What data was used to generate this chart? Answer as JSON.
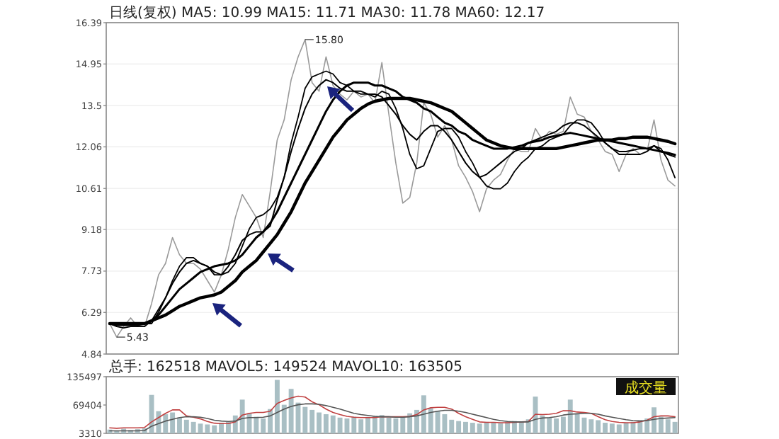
{
  "chart_data": [
    {
      "type": "line",
      "title": "日线(复权) MA5: 10.99 MA15: 11.71 MA30: 11.78 MA60: 12.17",
      "categories": [
        null,
        null,
        null,
        null,
        null,
        null,
        null,
        null,
        null,
        null,
        null,
        null,
        null,
        null,
        null,
        null,
        null,
        null,
        null,
        null,
        null,
        null,
        null,
        null,
        null,
        null,
        null,
        null,
        null,
        null,
        null,
        null,
        null,
        null,
        null,
        null,
        null,
        null,
        null,
        null,
        null,
        null,
        null,
        null,
        null,
        null,
        null,
        null,
        null,
        null,
        null,
        null,
        null,
        null,
        null,
        null,
        null,
        null,
        null,
        null,
        null,
        null,
        null,
        null,
        null,
        null,
        null,
        null,
        null,
        null,
        null,
        null,
        null,
        null,
        null,
        null,
        null,
        null,
        null,
        null,
        null,
        null
      ],
      "ylim": [
        4.84,
        16.39
      ],
      "yticks": [
        4.84,
        6.29,
        7.73,
        9.18,
        10.61,
        12.06,
        13.5,
        14.95,
        16.39
      ],
      "grid": "y",
      "tick_labels": "y",
      "annotations": [
        "15.80",
        "5.43"
      ],
      "series": [
        {
          "color": "#9a9a9a",
          "values": [
            5.9,
            5.43,
            5.8,
            6.1,
            5.8,
            5.8,
            6.6,
            7.6,
            8.0,
            8.9,
            8.3,
            8.0,
            8.0,
            7.8,
            7.4,
            7.0,
            7.6,
            8.5,
            9.6,
            10.4,
            10.0,
            9.6,
            8.9,
            10.5,
            12.3,
            13.0,
            14.4,
            15.2,
            15.8,
            14.3,
            14.0,
            15.2,
            14.2,
            13.9,
            13.7,
            14.0,
            13.8,
            13.9,
            13.6,
            15.0,
            13.2,
            11.5,
            10.1,
            10.3,
            11.5,
            13.6,
            13.2,
            12.4,
            12.8,
            12.3,
            11.4,
            11.0,
            10.5,
            9.8,
            10.6,
            10.9,
            11.1,
            11.6,
            12.0,
            11.9,
            11.9,
            12.7,
            12.3,
            12.6,
            12.5,
            12.6,
            13.8,
            13.2,
            13.1,
            12.6,
            12.3,
            11.9,
            11.8,
            11.2,
            11.8,
            12.0,
            11.8,
            11.9,
            13.0,
            11.6,
            10.9,
            10.7
          ]
        },
        {
          "color": "#000000",
          "values": [
            5.9,
            5.8,
            5.75,
            5.8,
            5.8,
            5.8,
            6.0,
            6.4,
            6.8,
            7.4,
            7.9,
            8.2,
            8.2,
            8.0,
            7.9,
            7.6,
            7.6,
            7.7,
            8.0,
            8.6,
            9.2,
            9.6,
            9.7,
            9.9,
            10.3,
            11.0,
            12.2,
            13.1,
            14.1,
            14.5,
            14.6,
            14.7,
            14.6,
            14.3,
            14.2,
            14.0,
            13.9,
            13.9,
            13.8,
            14.0,
            13.9,
            13.4,
            12.7,
            11.8,
            11.3,
            11.4,
            12.0,
            12.6,
            12.7,
            12.7,
            12.4,
            11.9,
            11.5,
            11.0,
            10.7,
            10.6,
            10.6,
            10.8,
            11.2,
            11.5,
            11.7,
            12.0,
            12.1,
            12.3,
            12.4,
            12.5,
            12.8,
            13.0,
            13.0,
            12.9,
            12.6,
            12.2,
            12.0,
            11.8,
            11.8,
            11.8,
            11.8,
            11.9,
            12.1,
            12.0,
            11.6,
            10.99
          ]
        },
        {
          "color": "#000000",
          "values": [
            5.9,
            5.9,
            5.9,
            5.9,
            5.9,
            5.9,
            5.9,
            6.3,
            6.8,
            7.3,
            7.7,
            8.0,
            8.1,
            8.0,
            7.9,
            7.7,
            7.6,
            7.9,
            8.3,
            8.8,
            9.0,
            9.1,
            9.1,
            9.3,
            10.2,
            11.0,
            11.9,
            12.7,
            13.4,
            13.9,
            14.2,
            14.4,
            14.3,
            14.1,
            14.0,
            14.0,
            14.0,
            13.9,
            13.9,
            13.8,
            13.5,
            13.2,
            12.8,
            12.5,
            12.3,
            12.6,
            12.8,
            12.8,
            12.6,
            12.3,
            11.9,
            11.5,
            11.2,
            11.0,
            11.1,
            11.3,
            11.5,
            11.7,
            11.9,
            12.0,
            12.2,
            12.3,
            12.4,
            12.5,
            12.6,
            12.8,
            12.9,
            12.9,
            12.8,
            12.6,
            12.4,
            12.2,
            12.0,
            11.9,
            11.9,
            11.95,
            12.0,
            12.0,
            12.1,
            11.9,
            11.8,
            11.71
          ]
        },
        {
          "color": "#000000",
          "values": [
            5.9,
            5.85,
            5.85,
            5.85,
            5.85,
            5.9,
            6.0,
            6.2,
            6.5,
            6.8,
            7.1,
            7.3,
            7.5,
            7.7,
            7.8,
            7.9,
            7.95,
            8.0,
            8.1,
            8.3,
            8.6,
            8.9,
            9.1,
            9.4,
            9.8,
            10.3,
            10.8,
            11.3,
            11.8,
            12.3,
            12.8,
            13.3,
            13.7,
            14.0,
            14.2,
            14.3,
            14.3,
            14.3,
            14.2,
            14.2,
            14.1,
            14.0,
            13.8,
            13.7,
            13.6,
            13.4,
            13.3,
            13.1,
            12.9,
            12.8,
            12.6,
            12.5,
            12.3,
            12.2,
            12.1,
            12.0,
            12.0,
            12.0,
            12.05,
            12.1,
            12.2,
            12.25,
            12.3,
            12.4,
            12.45,
            12.5,
            12.55,
            12.5,
            12.45,
            12.4,
            12.35,
            12.3,
            12.25,
            12.2,
            12.15,
            12.1,
            12.05,
            12.0,
            11.95,
            11.9,
            11.85,
            11.78
          ]
        },
        {
          "color": "#000000",
          "values": [
            5.9,
            5.9,
            5.9,
            5.9,
            5.9,
            5.9,
            6.0,
            6.1,
            6.2,
            6.35,
            6.5,
            6.6,
            6.7,
            6.8,
            6.85,
            6.9,
            7.0,
            7.2,
            7.4,
            7.7,
            7.9,
            8.1,
            8.4,
            8.7,
            9.0,
            9.4,
            9.8,
            10.3,
            10.8,
            11.2,
            11.6,
            12.0,
            12.4,
            12.7,
            13.0,
            13.2,
            13.4,
            13.55,
            13.65,
            13.7,
            13.75,
            13.75,
            13.75,
            13.75,
            13.7,
            13.65,
            13.6,
            13.5,
            13.4,
            13.3,
            13.1,
            12.9,
            12.7,
            12.5,
            12.3,
            12.2,
            12.1,
            12.05,
            12.0,
            12.0,
            12.0,
            12.0,
            12.0,
            12.0,
            12.0,
            12.05,
            12.1,
            12.15,
            12.2,
            12.25,
            12.3,
            12.3,
            12.3,
            12.35,
            12.35,
            12.4,
            12.4,
            12.4,
            12.35,
            12.3,
            12.25,
            12.17
          ]
        }
      ]
    },
    {
      "type": "bar",
      "title": "总手: 162518 MAVOL5: 149524 MAVOL10: 163505",
      "categories": [
        null,
        null,
        null,
        null,
        null,
        null,
        null,
        null,
        null,
        null,
        null,
        null,
        null,
        null,
        null,
        null,
        null,
        null,
        null,
        null,
        null,
        null,
        null,
        null,
        null,
        null,
        null,
        null,
        null,
        null,
        null,
        null,
        null,
        null,
        null,
        null,
        null,
        null,
        null,
        null,
        null,
        null,
        null,
        null,
        null,
        null,
        null,
        null,
        null,
        null,
        null,
        null,
        null,
        null,
        null,
        null,
        null,
        null,
        null,
        null,
        null,
        null,
        null,
        null,
        null,
        null,
        null,
        null,
        null,
        null,
        null,
        null,
        null,
        null,
        null,
        null,
        null,
        null,
        null,
        null,
        null,
        null
      ],
      "ylim": [
        3310,
        135497
      ],
      "yticks": [
        3310,
        69404,
        135497
      ],
      "tick_labels": "y",
      "annotations": [
        "成交量"
      ],
      "series": [
        {
          "color": "#a9bfc4",
          "values": [
            12000,
            10000,
            14000,
            11000,
            13000,
            15000,
            93000,
            55000,
            48000,
            52000,
            40000,
            35000,
            30000,
            26000,
            24000,
            22000,
            28000,
            30000,
            45000,
            82000,
            50000,
            42000,
            38000,
            60000,
            128000,
            70000,
            107000,
            75000,
            65000,
            58000,
            52000,
            48000,
            45000,
            40000,
            38000,
            42000,
            36000,
            40000,
            44000,
            46000,
            40000,
            38000,
            42000,
            50000,
            58000,
            92000,
            62000,
            55000,
            48000,
            35000,
            32000,
            30000,
            28000,
            26000,
            30000,
            28000,
            27000,
            30000,
            32000,
            31000,
            36000,
            89000,
            45000,
            40000,
            38000,
            42000,
            82000,
            48000,
            40000,
            36000,
            34000,
            28000,
            26000,
            24000,
            28000,
            30000,
            34000,
            38000,
            64000,
            42000,
            36000,
            30000
          ]
        },
        {
          "type": "line",
          "color": "#c04040",
          "values": [
            16000,
            15000,
            16000,
            16000,
            16000,
            17000,
            30000,
            40000,
            50000,
            58000,
            58000,
            44000,
            41000,
            37000,
            31000,
            27000,
            26000,
            26000,
            30000,
            46000,
            50000,
            52000,
            52000,
            55000,
            73000,
            80000,
            86000,
            90000,
            88000,
            77000,
            70000,
            60000,
            52000,
            47000,
            43000,
            41000,
            40000,
            40000,
            40000,
            42000,
            42000,
            42000,
            42000,
            43000,
            47000,
            58000,
            63000,
            64000,
            64000,
            60000,
            50000,
            42000,
            36000,
            30000,
            29000,
            29000,
            28000,
            28000,
            29000,
            30000,
            31000,
            48000,
            47000,
            48000,
            50000,
            56000,
            56000,
            53000,
            52000,
            50000,
            42000,
            35000,
            31000,
            29000,
            28000,
            28000,
            30000,
            34000,
            42000,
            44000,
            44000,
            42000
          ]
        },
        {
          "type": "line",
          "color": "#555555",
          "values": [
            9000,
            9000,
            9000,
            9000,
            9000,
            10000,
            20000,
            26000,
            32000,
            36000,
            40000,
            42000,
            42000,
            41000,
            38000,
            34000,
            32000,
            31000,
            32000,
            38000,
            40000,
            40000,
            41000,
            44000,
            52000,
            60000,
            66000,
            70000,
            72000,
            72000,
            71000,
            68000,
            64000,
            60000,
            55000,
            50000,
            47000,
            45000,
            43000,
            42000,
            42000,
            41000,
            41000,
            42000,
            44000,
            48000,
            52000,
            55000,
            57000,
            57000,
            55000,
            52000,
            48000,
            44000,
            40000,
            36000,
            33000,
            31000,
            30000,
            30000,
            30000,
            36000,
            39000,
            40000,
            42000,
            46000,
            48000,
            49000,
            50000,
            50000,
            48000,
            44000,
            41000,
            38000,
            35000,
            33000,
            32000,
            33000,
            36000,
            38000,
            39000,
            40000
          ]
        }
      ]
    }
  ]
}
